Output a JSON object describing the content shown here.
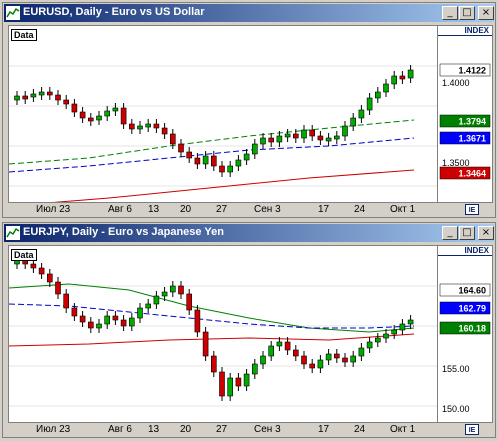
{
  "windows": [
    {
      "title": "EURUSD, Daily - Euro vs US Dollar",
      "data_label": "Data",
      "index_label": "INDEX",
      "price_labels": [
        "1.4000",
        "1.3500"
      ],
      "markers": [
        {
          "value": "1.4122",
          "bg": "#ffffff",
          "fg": "#000000"
        },
        {
          "value": "1.3794",
          "bg": "#008000",
          "fg": "#ffffff"
        },
        {
          "value": "1.3671",
          "bg": "#0000ff",
          "fg": "#ffffff"
        },
        {
          "value": "1.3464",
          "bg": "#cc0000",
          "fg": "#ffffff"
        }
      ],
      "x_labels": [
        "Июл 23",
        "Авг 6",
        "13",
        "20",
        "27",
        "Сен 3",
        "17",
        "24",
        "Окт 1"
      ]
    },
    {
      "title": "EURJPY, Daily - Euro vs Japanese Yen",
      "data_label": "Data",
      "index_label": "INDEX",
      "price_labels": [
        "155.00",
        "150.00"
      ],
      "markers": [
        {
          "value": "164.60",
          "bg": "#ffffff",
          "fg": "#000000"
        },
        {
          "value": "162.79",
          "bg": "#0000ff",
          "fg": "#ffffff"
        },
        {
          "value": "160.18",
          "bg": "#008000",
          "fg": "#ffffff"
        }
      ],
      "x_labels": [
        "Июл 23",
        "Авг 6",
        "13",
        "20",
        "27",
        "Сен 3",
        "17",
        "24",
        "Окт 1"
      ]
    }
  ],
  "window_buttons": {
    "minimize": "_",
    "maximize": "□",
    "close": "×"
  },
  "colors": {
    "up": "#00aa00",
    "down": "#cc0000",
    "ma_fast": "#008000",
    "ma_mid": "#0000cc",
    "ma_slow": "#cc0000"
  }
}
